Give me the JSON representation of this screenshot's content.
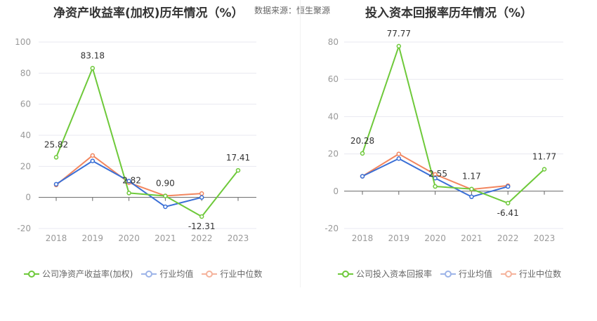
{
  "header": {
    "title_left": "净资产收益率(加权)历年情况（%）",
    "source": "数据来源：恒生聚源",
    "title_right": "投入资本回报率历年情况（%）"
  },
  "colors": {
    "company": "#6ec93a",
    "average": "#3a6fd6",
    "median": "#f2865f",
    "legend_average": "#9db4e8",
    "legend_median": "#f5b39c",
    "grid": "#e8e8f0",
    "zero_line": "#666666",
    "tick_text": "#999999"
  },
  "chart_data": [
    {
      "type": "line",
      "title": "净资产收益率(加权)历年情况（%）",
      "categories": [
        "2018",
        "2019",
        "2020",
        "2021",
        "2022",
        "2023"
      ],
      "ylim": [
        -20,
        100
      ],
      "yticks": [
        -20,
        0,
        20,
        40,
        60,
        80,
        100
      ],
      "series": [
        {
          "name": "公司净资产收益率(加权)",
          "key": "company",
          "values": [
            25.82,
            83.18,
            2.82,
            0.9,
            -12.31,
            17.41
          ],
          "labels": [
            "25.82",
            "83.18",
            "2.82",
            "0.90",
            "-12.31",
            "17.41"
          ]
        },
        {
          "name": "行业均值",
          "key": "average",
          "values": [
            8.5,
            23.5,
            10.5,
            -6,
            0,
            null
          ]
        },
        {
          "name": "行业中位数",
          "key": "median",
          "values": [
            8,
            27,
            9.5,
            1,
            2.5,
            null
          ]
        }
      ]
    },
    {
      "type": "line",
      "title": "投入资本回报率历年情况（%）",
      "categories": [
        "2018",
        "2019",
        "2020",
        "2021",
        "2022",
        "2023"
      ],
      "ylim": [
        -20,
        80
      ],
      "yticks": [
        -20,
        0,
        20,
        40,
        60,
        80
      ],
      "series": [
        {
          "name": "公司投入资本回报率",
          "key": "company",
          "values": [
            20.28,
            77.77,
            2.55,
            1.17,
            -6.41,
            11.77
          ],
          "labels": [
            "20.28",
            "77.77",
            "2.55",
            "1.17",
            "-6.41",
            "11.77"
          ]
        },
        {
          "name": "行业均值",
          "key": "average",
          "values": [
            8,
            17.5,
            7,
            -3,
            2.5,
            null
          ]
        },
        {
          "name": "行业中位数",
          "key": "median",
          "values": [
            8,
            20,
            9,
            1,
            3,
            null
          ]
        }
      ]
    }
  ]
}
